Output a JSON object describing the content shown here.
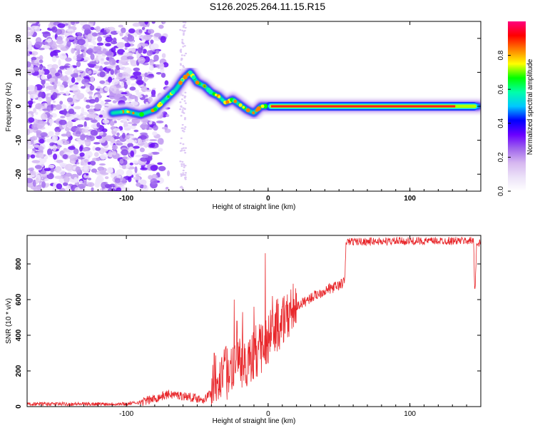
{
  "title": "S126.2025.264.11.15.R15",
  "colors": {
    "snr_line": "#e8262a",
    "colorbar": [
      "#ffffff",
      "#ece2f8",
      "#d6b7f0",
      "#a066ec",
      "#6a00ff",
      "#0000ff",
      "#00c8ff",
      "#00ffaa",
      "#00ff00",
      "#ffff00",
      "#ff8000",
      "#ff0000",
      "#ff007f"
    ]
  },
  "chart_data": [
    {
      "type": "heatmap",
      "name": "spectrogram",
      "xlabel": "Height of straight line (km)",
      "ylabel": "Frequency (Hz)",
      "xlim": [
        -170,
        150
      ],
      "ylim": [
        -25,
        25
      ],
      "xticks": [
        -100,
        0,
        100
      ],
      "xtick_labels": [
        "-100",
        "0",
        "100"
      ],
      "yticks": [
        -20,
        -10,
        0,
        10,
        20
      ],
      "ytick_labels": [
        "-20",
        "-10",
        "0",
        "10",
        "20"
      ],
      "ridge": [
        {
          "x": -110,
          "y": -2
        },
        {
          "x": -100,
          "y": -1.5
        },
        {
          "x": -90,
          "y": -2.5
        },
        {
          "x": -80,
          "y": -1
        },
        {
          "x": -75,
          "y": 1
        },
        {
          "x": -70,
          "y": 3
        },
        {
          "x": -65,
          "y": 5
        },
        {
          "x": -60,
          "y": 8
        },
        {
          "x": -55,
          "y": 10
        },
        {
          "x": -50,
          "y": 7
        },
        {
          "x": -45,
          "y": 6
        },
        {
          "x": -40,
          "y": 4
        },
        {
          "x": -35,
          "y": 3
        },
        {
          "x": -30,
          "y": 1
        },
        {
          "x": -25,
          "y": 2
        },
        {
          "x": -20,
          "y": 0.5
        },
        {
          "x": -15,
          "y": -1
        },
        {
          "x": -10,
          "y": -2
        },
        {
          "x": -5,
          "y": 0
        },
        {
          "x": 0,
          "y": 0
        },
        {
          "x": 50,
          "y": 0
        },
        {
          "x": 100,
          "y": 0
        },
        {
          "x": 148,
          "y": 0
        }
      ],
      "colorbar": {
        "label": "Normalized spectral amplitude",
        "range": [
          0,
          1
        ],
        "ticks": [
          0.0,
          0.2,
          0.4,
          0.6,
          0.8
        ],
        "tick_labels": [
          "0.0",
          "0.2",
          "0.4",
          "0.6",
          "0.8"
        ]
      }
    },
    {
      "type": "line",
      "name": "snr",
      "xlabel": "Height of straight line (km)",
      "ylabel": "SNR (10 * v/v)",
      "xlim": [
        -170,
        150
      ],
      "ylim": [
        0,
        960
      ],
      "xticks": [
        -100,
        0,
        100
      ],
      "xtick_labels": [
        "-100",
        "0",
        "100"
      ],
      "yticks": [
        0,
        200,
        400,
        600,
        800
      ],
      "ytick_labels": [
        "0",
        "200",
        "400",
        "600",
        "800"
      ],
      "trend": [
        {
          "x": -170,
          "y": 15
        },
        {
          "x": -100,
          "y": 15
        },
        {
          "x": -90,
          "y": 25
        },
        {
          "x": -80,
          "y": 45
        },
        {
          "x": -70,
          "y": 70
        },
        {
          "x": -60,
          "y": 60
        },
        {
          "x": -45,
          "y": 40
        },
        {
          "x": -40,
          "y": 80
        },
        {
          "x": -35,
          "y": 170
        },
        {
          "x": -25,
          "y": 230
        },
        {
          "x": -15,
          "y": 260
        },
        {
          "x": -5,
          "y": 320
        },
        {
          "x": 0,
          "y": 380
        },
        {
          "x": 10,
          "y": 470
        },
        {
          "x": 20,
          "y": 560
        },
        {
          "x": 30,
          "y": 610
        },
        {
          "x": 40,
          "y": 650
        },
        {
          "x": 50,
          "y": 680
        },
        {
          "x": 54,
          "y": 700
        },
        {
          "x": 55,
          "y": 925
        },
        {
          "x": 145,
          "y": 930
        },
        {
          "x": 145.5,
          "y": 700
        },
        {
          "x": 146,
          "y": 660
        },
        {
          "x": 147,
          "y": 900
        },
        {
          "x": 150,
          "y": 920
        }
      ],
      "spikes": [
        {
          "x": -38,
          "y": 300
        },
        {
          "x": -30,
          "y": 330
        },
        {
          "x": -24,
          "y": 600
        },
        {
          "x": -22,
          "y": 480
        },
        {
          "x": -18,
          "y": 530
        },
        {
          "x": -10,
          "y": 560
        },
        {
          "x": -5,
          "y": 460
        },
        {
          "x": -2,
          "y": 860
        },
        {
          "x": 3,
          "y": 620
        },
        {
          "x": 6,
          "y": 600
        },
        {
          "x": 10,
          "y": 560
        },
        {
          "x": 15,
          "y": 580
        }
      ]
    }
  ]
}
